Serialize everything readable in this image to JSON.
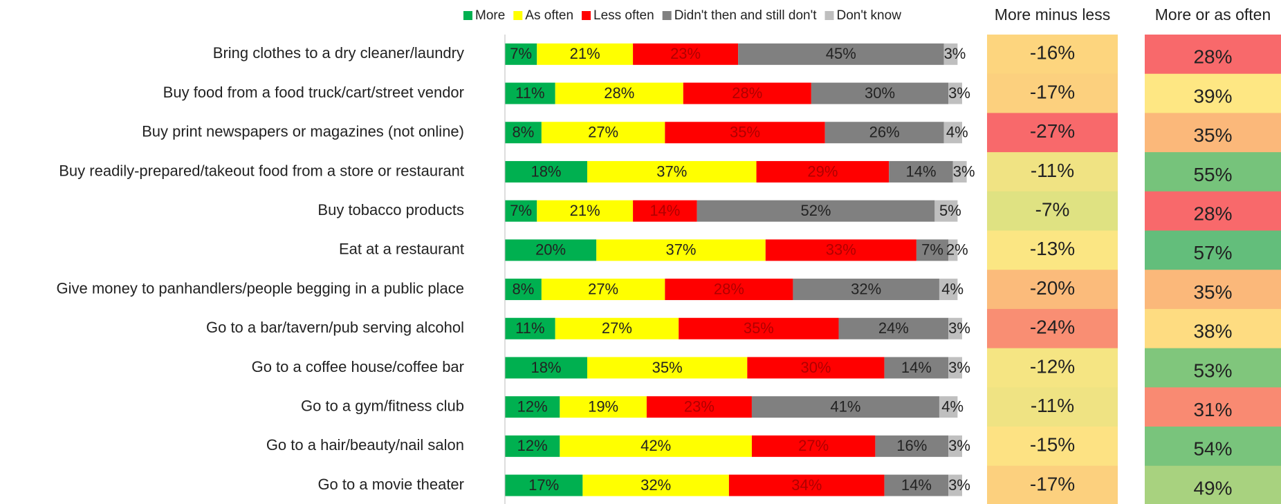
{
  "chart_data": {
    "type": "stacked-bar",
    "orientation": "horizontal",
    "xlim": [
      0,
      100
    ],
    "categories": [
      "Bring clothes to a dry cleaner/laundry",
      "Buy food from a food truck/cart/street vendor",
      "Buy print newspapers or magazines (not online)",
      "Buy readily-prepared/takeout food from a store or restaurant",
      "Buy tobacco products",
      "Eat at a restaurant",
      "Give money to panhandlers/people begging in a public place",
      "Go to a bar/tavern/pub serving alcohol",
      "Go to a coffee house/coffee bar",
      "Go to a gym/fitness club",
      "Go to a hair/beauty/nail salon",
      "Go to a movie theater"
    ],
    "series": [
      {
        "name": "More",
        "color": "#00b050",
        "values": [
          7,
          11,
          8,
          18,
          7,
          20,
          8,
          11,
          18,
          12,
          12,
          17
        ],
        "value_labels": [
          "7%",
          "11%",
          "8%",
          "18%",
          "7%",
          "20%",
          "8%",
          "11%",
          "18%",
          "12%",
          "12%",
          "17%"
        ]
      },
      {
        "name": "As often",
        "color": "#ffff00",
        "values": [
          21,
          28,
          27,
          37,
          21,
          37,
          27,
          27,
          35,
          19,
          42,
          32
        ],
        "value_labels": [
          "21%",
          "28%",
          "27%",
          "37%",
          "21%",
          "37%",
          "27%",
          "27%",
          "35%",
          "19%",
          "42%",
          "32%"
        ]
      },
      {
        "name": "Less often",
        "color": "#ff0000",
        "values": [
          23,
          28,
          35,
          29,
          14,
          33,
          28,
          35,
          30,
          23,
          27,
          34
        ],
        "value_labels": [
          "23%",
          "28%",
          "35%",
          "29%",
          "14%",
          "33%",
          "28%",
          "35%",
          "30%",
          "23%",
          "27%",
          "34%"
        ]
      },
      {
        "name": "Didn't then and still don't",
        "color": "#808080",
        "values": [
          45,
          30,
          26,
          14,
          52,
          7,
          32,
          24,
          14,
          41,
          16,
          14
        ],
        "value_labels": [
          "45%",
          "30%",
          "26%",
          "14%",
          "52%",
          "7%",
          "32%",
          "24%",
          "14%",
          "41%",
          "16%",
          "14%"
        ]
      },
      {
        "name": "Don't know",
        "color": "#bfbfbf",
        "values": [
          3,
          3,
          4,
          3,
          5,
          2,
          4,
          3,
          3,
          4,
          3,
          3
        ],
        "value_labels": [
          "3%",
          "3%",
          "4%",
          "3%",
          "5%",
          "2%",
          "4%",
          "3%",
          "3%",
          "4%",
          "3%",
          "3%"
        ]
      }
    ],
    "columns": [
      {
        "title": "More minus less",
        "values": [
          -16,
          -17,
          -27,
          -11,
          -7,
          -13,
          -20,
          -24,
          -12,
          -11,
          -15,
          -17
        ],
        "value_labels": [
          "-16%",
          "-17%",
          "-27%",
          "-11%",
          "-7%",
          "-13%",
          "-20%",
          "-24%",
          "-12%",
          "-11%",
          "-15%",
          "-17%"
        ],
        "colors": [
          "#fdd57e",
          "#fcd07e",
          "#f8696b",
          "#f0e383",
          "#dfe282",
          "#fbe683",
          "#fbbb7b",
          "#f98e73",
          "#f5e583",
          "#efe383",
          "#fde283",
          "#fcd07e"
        ]
      },
      {
        "title": "More or as often",
        "values": [
          28,
          39,
          35,
          55,
          28,
          57,
          35,
          38,
          53,
          31,
          54,
          49
        ],
        "value_labels": [
          "28%",
          "39%",
          "35%",
          "55%",
          "28%",
          "57%",
          "35%",
          "38%",
          "53%",
          "31%",
          "54%",
          "49%"
        ],
        "colors": [
          "#f8696b",
          "#fee783",
          "#fbb87a",
          "#76c37b",
          "#f8696b",
          "#63be7b",
          "#fbb87a",
          "#fedc81",
          "#80c67c",
          "#f98a72",
          "#79c47c",
          "#a8d27f"
        ]
      }
    ]
  }
}
